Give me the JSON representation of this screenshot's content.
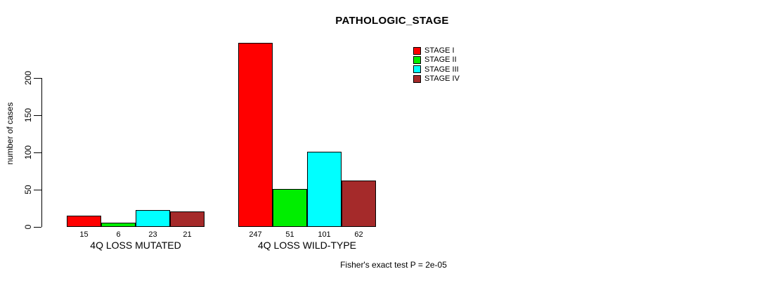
{
  "title": "PATHOLOGIC_STAGE",
  "footer_note": "Fisher's exact test P = 2e-05",
  "chart_data": {
    "type": "bar",
    "categories": [
      "4Q LOSS MUTATED",
      "4Q LOSS WILD-TYPE"
    ],
    "series": [
      {
        "name": "STAGE I",
        "color": "#ff0000",
        "values": [
          15,
          247
        ]
      },
      {
        "name": "STAGE II",
        "color": "#00ee00",
        "values": [
          6,
          51
        ]
      },
      {
        "name": "STAGE III",
        "color": "#00ffff",
        "values": [
          23,
          101
        ]
      },
      {
        "name": "STAGE IV",
        "color": "#a52a2a",
        "values": [
          21,
          62
        ]
      }
    ],
    "ylabel": "number of cases",
    "yticks": [
      0,
      50,
      100,
      150,
      200
    ],
    "ylim": [
      0,
      250
    ],
    "grid": false,
    "legend_position": "top-right",
    "bar_value_labels_shown": true,
    "background": "#ffffff",
    "bar_border_color": "#000000"
  }
}
